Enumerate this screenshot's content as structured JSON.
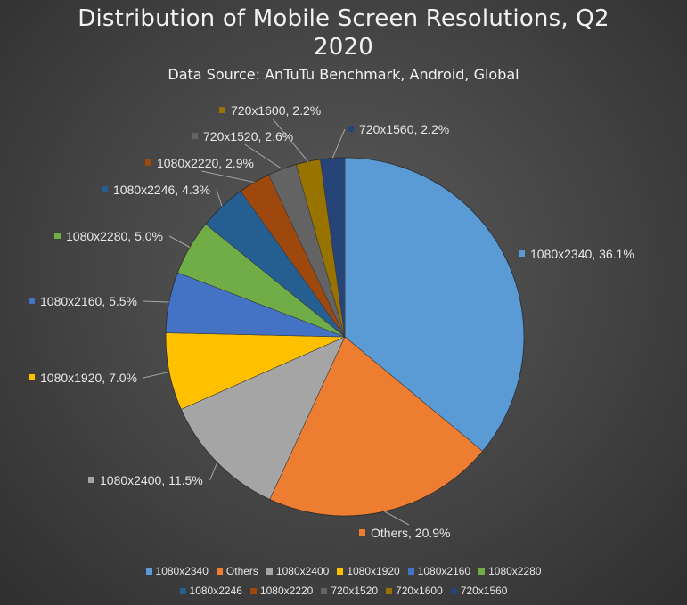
{
  "chart_data": {
    "type": "pie",
    "title_lines": [
      "Distribution of Mobile Screen Resolutions, Q2",
      "2020"
    ],
    "subtitle": "Data Source: AnTuTu Benchmark, Android, Global",
    "slices": [
      {
        "label": "1080x2340",
        "value": 36.1,
        "display": "36.1%",
        "color": "#5b9bd5"
      },
      {
        "label": "Others",
        "value": 20.9,
        "display": "20.9%",
        "color": "#ed7d31"
      },
      {
        "label": "1080x2400",
        "value": 11.5,
        "display": "11.5%",
        "color": "#a5a5a5"
      },
      {
        "label": "1080x1920",
        "value": 7.0,
        "display": "7.0%",
        "color": "#ffc000"
      },
      {
        "label": "1080x2160",
        "value": 5.5,
        "display": "5.5%",
        "color": "#4472c4"
      },
      {
        "label": "1080x2280",
        "value": 5.0,
        "display": "5.0%",
        "color": "#70ad47"
      },
      {
        "label": "1080x2246",
        "value": 4.3,
        "display": "4.3%",
        "color": "#255e91"
      },
      {
        "label": "1080x2220",
        "value": 2.9,
        "display": "2.9%",
        "color": "#9e480e"
      },
      {
        "label": "720x1520",
        "value": 2.6,
        "display": "2.6%",
        "color": "#636363"
      },
      {
        "label": "720x1600",
        "value": 2.2,
        "display": "2.2%",
        "color": "#997300"
      },
      {
        "label": "720x1560",
        "value": 2.2,
        "display": "2.2%",
        "color": "#264478"
      }
    ],
    "legend_rows": [
      [
        "1080x2340",
        "Others",
        "1080x2400",
        "1080x1920",
        "1080x2160",
        "1080x2280"
      ],
      [
        "1080x2246",
        "1080x2220",
        "720x1520",
        "720x1600",
        "720x1560"
      ]
    ],
    "legend_position": "bottom",
    "start": "12 o'clock",
    "direction": "clockwise"
  }
}
